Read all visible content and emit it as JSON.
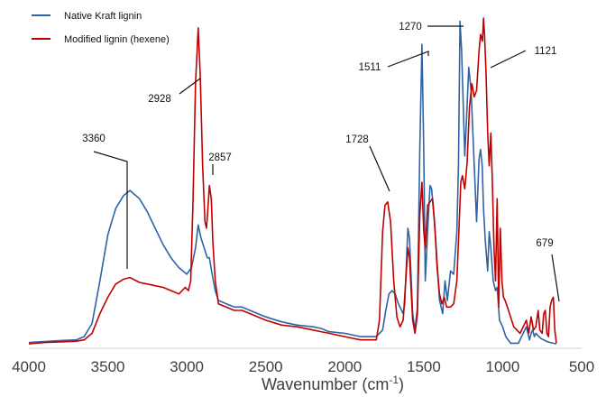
{
  "chart_data": {
    "type": "line",
    "title": "",
    "xlabel": "Wavenumber (cm",
    "xlabel_sup": "-1",
    "xlabel_close": ")",
    "ylabel": "",
    "xlim": [
      4000,
      500
    ],
    "ylim": [
      0,
      1
    ],
    "x_reversed": true,
    "grid": false,
    "legend_position": "top-left",
    "x_ticks": [
      4000,
      3500,
      3000,
      2500,
      2000,
      1500,
      1000,
      500
    ],
    "x_tick_labels": [
      "4000",
      "3500",
      "3000",
      "2500",
      "2000",
      "1500",
      "1000",
      "500"
    ],
    "series": [
      {
        "name": "Native Kraft lignin",
        "color": "#2E64A6",
        "points": [
          [
            4000,
            0.012
          ],
          [
            3900,
            0.015
          ],
          [
            3800,
            0.018
          ],
          [
            3700,
            0.02
          ],
          [
            3650,
            0.03
          ],
          [
            3600,
            0.07
          ],
          [
            3550,
            0.2
          ],
          [
            3500,
            0.34
          ],
          [
            3450,
            0.42
          ],
          [
            3400,
            0.46
          ],
          [
            3360,
            0.475
          ],
          [
            3300,
            0.45
          ],
          [
            3250,
            0.41
          ],
          [
            3200,
            0.36
          ],
          [
            3150,
            0.31
          ],
          [
            3100,
            0.27
          ],
          [
            3050,
            0.24
          ],
          [
            3000,
            0.22
          ],
          [
            2970,
            0.24
          ],
          [
            2945,
            0.3
          ],
          [
            2928,
            0.37
          ],
          [
            2910,
            0.33
          ],
          [
            2890,
            0.3
          ],
          [
            2870,
            0.27
          ],
          [
            2857,
            0.27
          ],
          [
            2840,
            0.22
          ],
          [
            2820,
            0.17
          ],
          [
            2800,
            0.14
          ],
          [
            2700,
            0.12
          ],
          [
            2650,
            0.12
          ],
          [
            2600,
            0.11
          ],
          [
            2500,
            0.09
          ],
          [
            2400,
            0.075
          ],
          [
            2300,
            0.065
          ],
          [
            2200,
            0.06
          ],
          [
            2150,
            0.055
          ],
          [
            2100,
            0.045
          ],
          [
            2000,
            0.04
          ],
          [
            1900,
            0.03
          ],
          [
            1800,
            0.03
          ],
          [
            1760,
            0.05
          ],
          [
            1740,
            0.11
          ],
          [
            1720,
            0.16
          ],
          [
            1700,
            0.17
          ],
          [
            1680,
            0.16
          ],
          [
            1660,
            0.13
          ],
          [
            1630,
            0.1
          ],
          [
            1620,
            0.13
          ],
          [
            1600,
            0.36
          ],
          [
            1590,
            0.33
          ],
          [
            1570,
            0.1
          ],
          [
            1555,
            0.05
          ],
          [
            1540,
            0.12
          ],
          [
            1525,
            0.6
          ],
          [
            1511,
            0.92
          ],
          [
            1500,
            0.6
          ],
          [
            1490,
            0.2
          ],
          [
            1475,
            0.35
          ],
          [
            1460,
            0.49
          ],
          [
            1450,
            0.48
          ],
          [
            1440,
            0.43
          ],
          [
            1425,
            0.33
          ],
          [
            1400,
            0.14
          ],
          [
            1380,
            0.1
          ],
          [
            1365,
            0.2
          ],
          [
            1350,
            0.14
          ],
          [
            1330,
            0.23
          ],
          [
            1310,
            0.22
          ],
          [
            1290,
            0.35
          ],
          [
            1280,
            0.55
          ],
          [
            1270,
            0.99
          ],
          [
            1260,
            0.9
          ],
          [
            1240,
            0.58
          ],
          [
            1230,
            0.68
          ],
          [
            1215,
            0.85
          ],
          [
            1200,
            0.78
          ],
          [
            1180,
            0.55
          ],
          [
            1165,
            0.38
          ],
          [
            1150,
            0.57
          ],
          [
            1140,
            0.6
          ],
          [
            1130,
            0.55
          ],
          [
            1121,
            0.42
          ],
          [
            1110,
            0.32
          ],
          [
            1095,
            0.23
          ],
          [
            1085,
            0.35
          ],
          [
            1075,
            0.3
          ],
          [
            1060,
            0.2
          ],
          [
            1045,
            0.17
          ],
          [
            1035,
            0.18
          ],
          [
            1020,
            0.08
          ],
          [
            1000,
            0.06
          ],
          [
            980,
            0.03
          ],
          [
            950,
            0.01
          ],
          [
            900,
            0.01
          ],
          [
            860,
            0.05
          ],
          [
            850,
            0.06
          ],
          [
            830,
            0.02
          ],
          [
            820,
            0.04
          ],
          [
            810,
            0.05
          ],
          [
            800,
            0.03
          ],
          [
            790,
            0.04
          ],
          [
            760,
            0.025
          ],
          [
            740,
            0.02
          ],
          [
            720,
            0.015
          ],
          [
            700,
            0.012
          ],
          [
            680,
            0.01
          ],
          [
            660,
            0.008
          ]
        ]
      },
      {
        "name": "Modified lignin (hexene)",
        "color": "#C00000",
        "points": [
          [
            4000,
            0.008
          ],
          [
            3900,
            0.012
          ],
          [
            3800,
            0.014
          ],
          [
            3700,
            0.016
          ],
          [
            3650,
            0.02
          ],
          [
            3600,
            0.04
          ],
          [
            3550,
            0.1
          ],
          [
            3500,
            0.15
          ],
          [
            3450,
            0.19
          ],
          [
            3400,
            0.205
          ],
          [
            3360,
            0.21
          ],
          [
            3300,
            0.195
          ],
          [
            3250,
            0.19
          ],
          [
            3200,
            0.185
          ],
          [
            3150,
            0.18
          ],
          [
            3100,
            0.17
          ],
          [
            3050,
            0.16
          ],
          [
            3010,
            0.18
          ],
          [
            2990,
            0.17
          ],
          [
            2975,
            0.2
          ],
          [
            2960,
            0.45
          ],
          [
            2945,
            0.8
          ],
          [
            2928,
            0.97
          ],
          [
            2915,
            0.83
          ],
          [
            2900,
            0.55
          ],
          [
            2885,
            0.38
          ],
          [
            2875,
            0.36
          ],
          [
            2865,
            0.43
          ],
          [
            2857,
            0.49
          ],
          [
            2845,
            0.45
          ],
          [
            2835,
            0.32
          ],
          [
            2820,
            0.2
          ],
          [
            2800,
            0.13
          ],
          [
            2700,
            0.11
          ],
          [
            2650,
            0.11
          ],
          [
            2600,
            0.1
          ],
          [
            2500,
            0.08
          ],
          [
            2400,
            0.065
          ],
          [
            2300,
            0.06
          ],
          [
            2200,
            0.05
          ],
          [
            2150,
            0.045
          ],
          [
            2100,
            0.04
          ],
          [
            2000,
            0.03
          ],
          [
            1900,
            0.02
          ],
          [
            1800,
            0.02
          ],
          [
            1780,
            0.08
          ],
          [
            1760,
            0.35
          ],
          [
            1745,
            0.43
          ],
          [
            1728,
            0.44
          ],
          [
            1710,
            0.38
          ],
          [
            1690,
            0.2
          ],
          [
            1670,
            0.09
          ],
          [
            1650,
            0.06
          ],
          [
            1630,
            0.08
          ],
          [
            1600,
            0.3
          ],
          [
            1590,
            0.27
          ],
          [
            1570,
            0.08
          ],
          [
            1555,
            0.04
          ],
          [
            1540,
            0.1
          ],
          [
            1525,
            0.4
          ],
          [
            1511,
            0.5
          ],
          [
            1500,
            0.35
          ],
          [
            1490,
            0.3
          ],
          [
            1475,
            0.43
          ],
          [
            1460,
            0.44
          ],
          [
            1445,
            0.45
          ],
          [
            1430,
            0.37
          ],
          [
            1415,
            0.24
          ],
          [
            1400,
            0.16
          ],
          [
            1385,
            0.13
          ],
          [
            1370,
            0.15
          ],
          [
            1355,
            0.12
          ],
          [
            1330,
            0.12
          ],
          [
            1310,
            0.13
          ],
          [
            1290,
            0.2
          ],
          [
            1280,
            0.32
          ],
          [
            1265,
            0.5
          ],
          [
            1255,
            0.52
          ],
          [
            1240,
            0.48
          ],
          [
            1225,
            0.56
          ],
          [
            1210,
            0.73
          ],
          [
            1195,
            0.8
          ],
          [
            1180,
            0.76
          ],
          [
            1165,
            0.78
          ],
          [
            1150,
            0.9
          ],
          [
            1140,
            0.95
          ],
          [
            1128,
            0.93
          ],
          [
            1121,
            1.0
          ],
          [
            1115,
            0.95
          ],
          [
            1105,
            0.83
          ],
          [
            1095,
            0.65
          ],
          [
            1085,
            0.55
          ],
          [
            1075,
            0.65
          ],
          [
            1065,
            0.5
          ],
          [
            1055,
            0.3
          ],
          [
            1045,
            0.2
          ],
          [
            1035,
            0.45
          ],
          [
            1025,
            0.12
          ],
          [
            1015,
            0.36
          ],
          [
            1005,
            0.2
          ],
          [
            995,
            0.15
          ],
          [
            985,
            0.14
          ],
          [
            970,
            0.12
          ],
          [
            950,
            0.09
          ],
          [
            930,
            0.06
          ],
          [
            910,
            0.05
          ],
          [
            890,
            0.04
          ],
          [
            870,
            0.06
          ],
          [
            850,
            0.08
          ],
          [
            835,
            0.04
          ],
          [
            820,
            0.09
          ],
          [
            805,
            0.05
          ],
          [
            790,
            0.06
          ],
          [
            775,
            0.11
          ],
          [
            765,
            0.05
          ],
          [
            750,
            0.04
          ],
          [
            740,
            0.1
          ],
          [
            730,
            0.11
          ],
          [
            720,
            0.04
          ],
          [
            710,
            0.03
          ],
          [
            700,
            0.12
          ],
          [
            690,
            0.14
          ],
          [
            679,
            0.15
          ],
          [
            670,
            0.05
          ],
          [
            660,
            0.01
          ]
        ]
      }
    ],
    "annotations": [
      {
        "text": "3360",
        "x": 3360,
        "series": 0
      },
      {
        "text": "2928",
        "x": 2928,
        "series": 1
      },
      {
        "text": "2857",
        "x": 2857,
        "series": 1
      },
      {
        "text": "1728",
        "x": 1728,
        "series": 1
      },
      {
        "text": "1511",
        "x": 1511,
        "series": 0
      },
      {
        "text": "1270",
        "x": 1270,
        "series": 0
      },
      {
        "text": "1121",
        "x": 1121,
        "series": 1
      },
      {
        "text": "679",
        "x": 679,
        "series": 1
      }
    ]
  }
}
